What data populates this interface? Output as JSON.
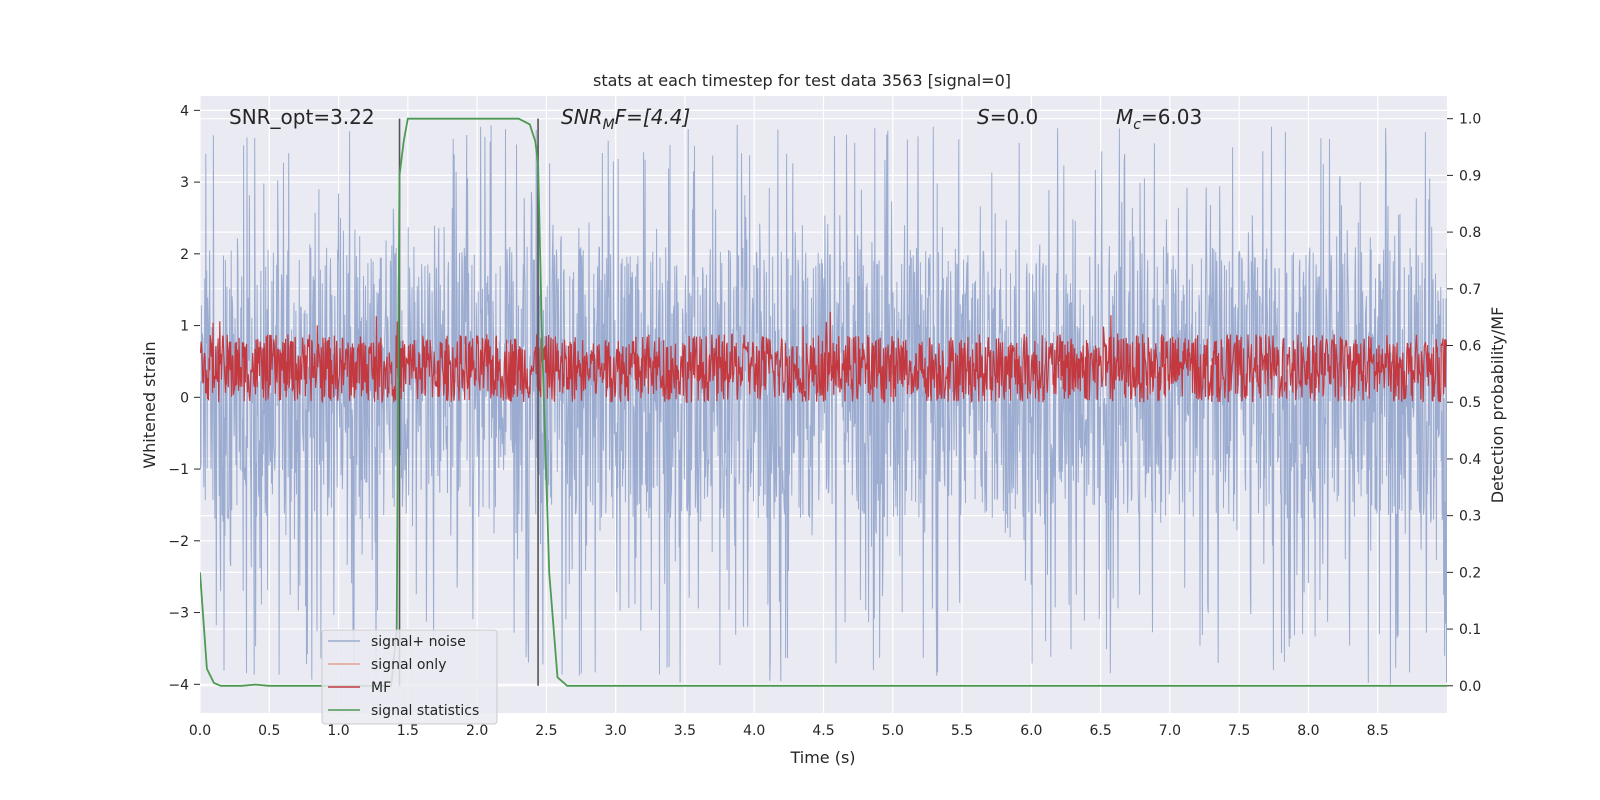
{
  "chart_data": {
    "type": "line",
    "title": "stats at each timestep for test data 3563 [signal=0]",
    "xlabel": "Time (s)",
    "ylabel": "Whitened strain",
    "y2label": "Detection probability/MF",
    "xlim": [
      0,
      9.0
    ],
    "ylim": [
      -4.4,
      4.2
    ],
    "y2lim": [
      -0.048,
      1.04
    ],
    "x_ticks": [
      "0.0",
      "0.5",
      "1.0",
      "1.5",
      "2.0",
      "2.5",
      "3.0",
      "3.5",
      "4.0",
      "4.5",
      "5.0",
      "5.5",
      "6.0",
      "6.5",
      "7.0",
      "7.5",
      "8.0",
      "8.5"
    ],
    "y_ticks": [
      "4",
      "3",
      "2",
      "1",
      "0",
      "−1",
      "−2",
      "−3",
      "−4"
    ],
    "y2_ticks": [
      "1.0",
      "0.9",
      "0.8",
      "0.7",
      "0.6",
      "0.5",
      "0.4",
      "0.3",
      "0.2",
      "0.1",
      "0.0"
    ],
    "grid": true,
    "legend_position": "lower-left",
    "annotations": {
      "snr_opt": "SNR_opt=3.22",
      "snr_mf_main": "SNR",
      "snr_mf_sub": "M",
      "snr_mf_rest": "F=[4.4]",
      "s_italic": "S",
      "s_rest": "=0.0",
      "mc_italic": "M",
      "mc_sub": "c",
      "mc_rest": "=6.03"
    },
    "vertical_markers": [
      1.44,
      2.44
    ],
    "series": [
      {
        "name": "signal+ noise",
        "color": "#9bacd0",
        "noise_band": [
          -1.7,
          2.1
        ],
        "peak_min": -4.0,
        "peak_max": 3.8
      },
      {
        "name": "signal only",
        "color": "#e8a292",
        "values": []
      },
      {
        "name": "MF",
        "color": "#c4393f",
        "band_on_y2": [
          0.5,
          0.62
        ]
      },
      {
        "name": "signal statistics",
        "color": "#4e9a52",
        "x": [
          0.0,
          0.05,
          0.1,
          0.15,
          0.2,
          0.3,
          0.4,
          0.5,
          0.6,
          1.0,
          1.3,
          1.38,
          1.42,
          1.44,
          1.47,
          1.5,
          2.0,
          2.3,
          2.38,
          2.42,
          2.44,
          2.47,
          2.52,
          2.58,
          2.65,
          3.0,
          9.0
        ],
        "values": [
          0.2,
          0.03,
          0.005,
          0.0,
          0.0,
          0.0,
          0.002,
          0.0,
          0.0,
          0.0,
          0.0,
          0.0,
          0.1,
          0.9,
          0.96,
          1.0,
          1.0,
          1.0,
          0.99,
          0.96,
          0.92,
          0.6,
          0.2,
          0.015,
          0.0,
          0.0,
          0.0
        ]
      }
    ]
  }
}
